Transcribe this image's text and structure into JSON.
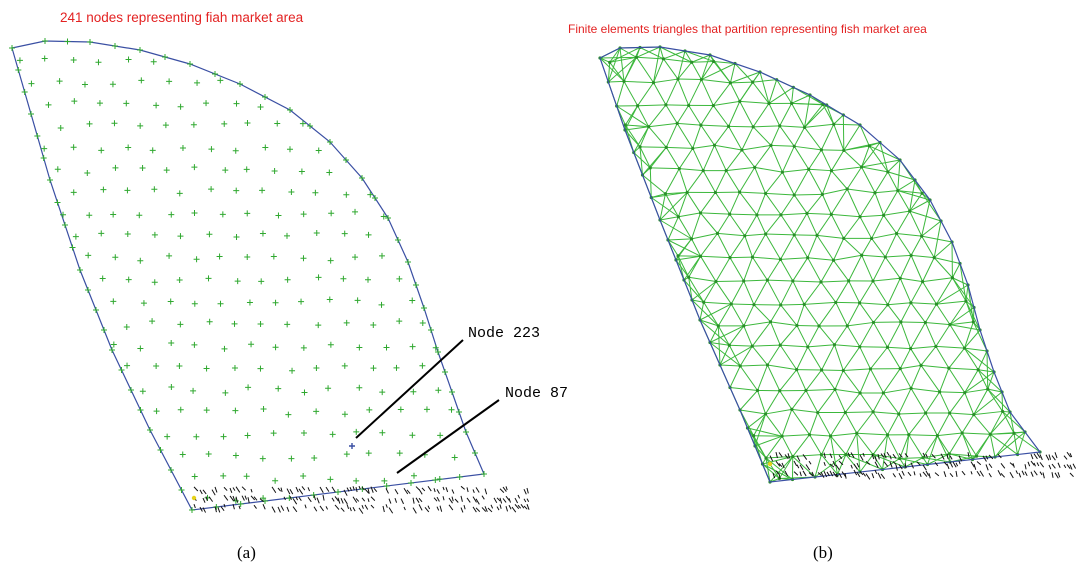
{
  "panel_a": {
    "title": "241 nodes representing fiah market area",
    "caption": "(a)",
    "callouts": [
      {
        "id": "node223",
        "label": "Node 223"
      },
      {
        "id": "node87",
        "label": "Node 87"
      }
    ]
  },
  "panel_b": {
    "title": "Finite elements triangles that partition representing fish market area",
    "caption": "(b)"
  },
  "colors": {
    "title": "#e32222",
    "boundary": "#3a4fa3",
    "node": "#2fa82f",
    "mesh": "#3cb83c",
    "highlight_node": "#3a4fa3",
    "annotation": "#000000"
  },
  "node_count": 241,
  "icons": [
    "plus-marker-icon"
  ]
}
